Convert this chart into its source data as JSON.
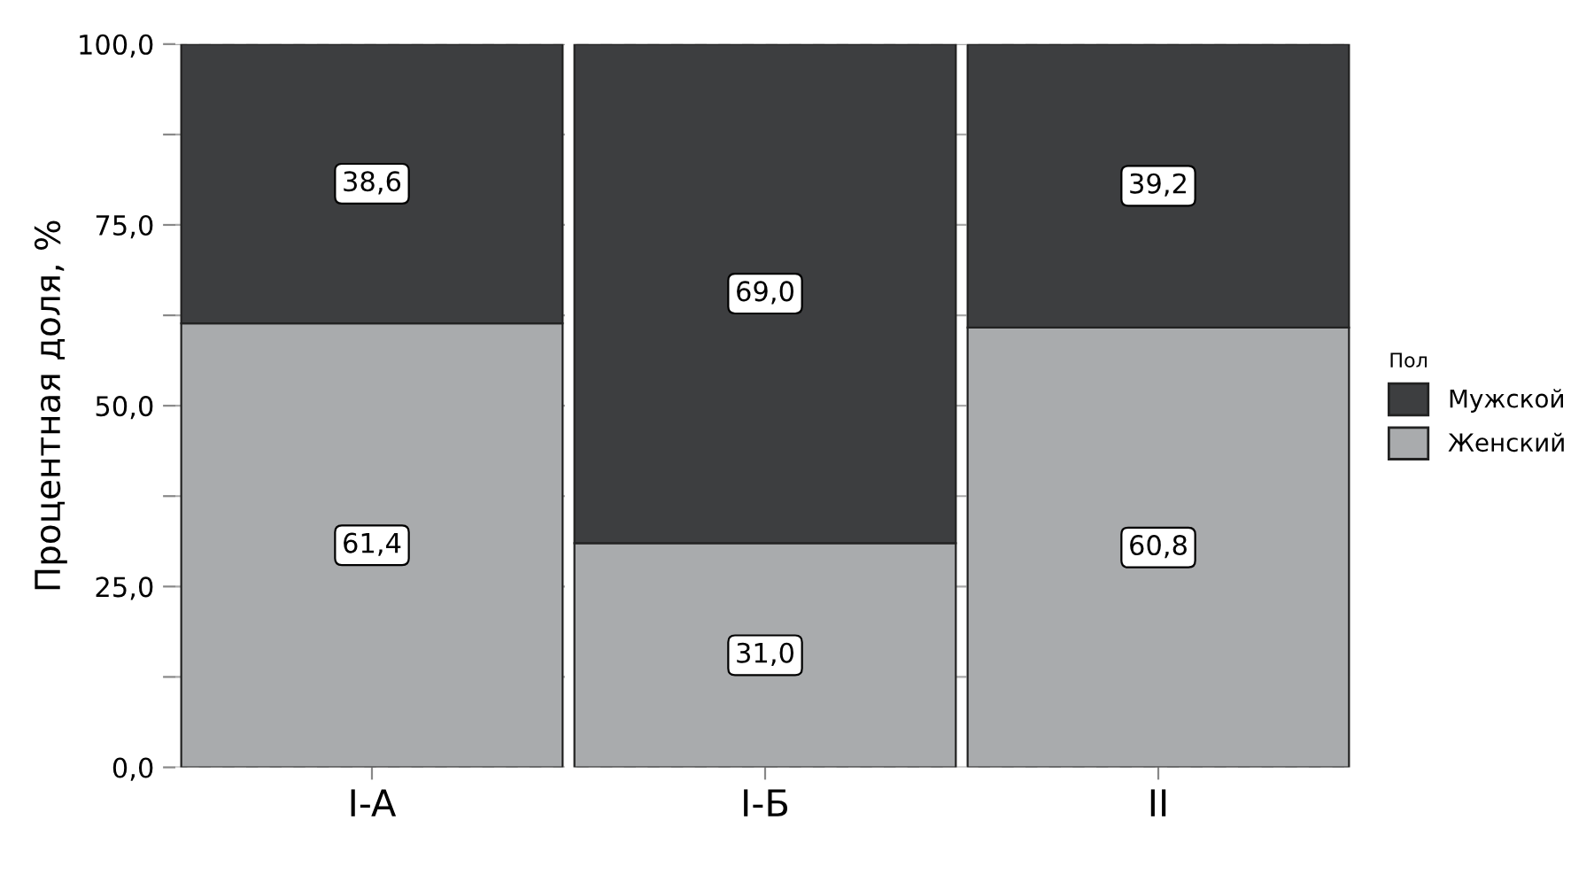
{
  "chart_data": {
    "type": "bar",
    "stacked": true,
    "categories": [
      "I-A",
      "I-Б",
      "II"
    ],
    "ylabel": "Процентная доля, %",
    "legend_title": "Пол",
    "legend": "right",
    "series": [
      {
        "name": "Женский",
        "color": "#a9abad",
        "values": [
          61.4,
          31.0,
          60.8
        ],
        "value_labels": [
          "61,4",
          "31,0",
          "60,8"
        ]
      },
      {
        "name": "Мужской",
        "color": "#3d3e40",
        "values": [
          38.6,
          69.0,
          39.2
        ],
        "value_labels": [
          "38,6",
          "69,0",
          "39,2"
        ]
      }
    ],
    "ylim": [
      0,
      100
    ],
    "yticks": [
      {
        "value": 0,
        "label": "0,0"
      },
      {
        "value": 12.5,
        "label": null
      },
      {
        "value": 25,
        "label": "25,0"
      },
      {
        "value": 37.5,
        "label": null
      },
      {
        "value": 50,
        "label": "50,0"
      },
      {
        "value": 62.5,
        "label": null
      },
      {
        "value": 75,
        "label": "75,0"
      },
      {
        "value": 87.5,
        "label": null
      },
      {
        "value": 100,
        "label": "100,0"
      }
    ],
    "grid": true
  }
}
